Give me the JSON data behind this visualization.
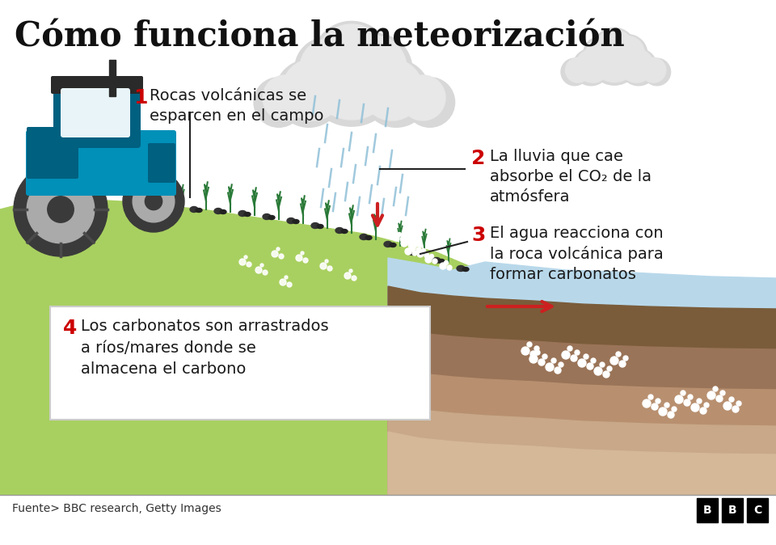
{
  "title": "Cómo funciona la meteorización",
  "title_fontsize": 30,
  "title_fontweight": "bold",
  "bg_color": "#ffffff",
  "source_text": "Fuente> BBC research, Getty Images",
  "steps": [
    {
      "num": "1",
      "text": "Rocas volcánicas se\nesparcen en el campo"
    },
    {
      "num": "2",
      "text": "La lluvia que cae\nabsorbe el CO₂ de la\natmósfera"
    },
    {
      "num": "3",
      "text": "El agua reacciona con\nla roca volcánica para\nformar carbonatos"
    },
    {
      "num": "4",
      "text": "Los carbonatos son arrastrados\na ríos/mares donde se\nalmacena el carbono"
    }
  ],
  "colors": {
    "step_num": "#cc0000",
    "step_text": "#1a1a1a",
    "grass_light": "#a8d060",
    "grass_dark": "#7ab030",
    "soil_1": "#7a5c3a",
    "soil_2": "#9a7458",
    "soil_3": "#b89070",
    "soil_4": "#c8a888",
    "soil_5": "#d4b898",
    "water": "#b8d8ea",
    "water_line": "#90b8d0",
    "rock_dark": "#333333",
    "plant_green": "#2a7a38",
    "plant_mid": "#1e6030",
    "tractor_blue": "#0090b8",
    "tractor_dark": "#006080",
    "tractor_mid": "#00a8d0",
    "wheel_dark": "#444444",
    "wheel_mid": "#666666",
    "wheel_rim": "#b0b0b0",
    "cloud_light": "#e0e0e0",
    "cloud_mid": "#c8c8c8",
    "rain_blue": "#90c0d8",
    "arrow_red": "#cc2020",
    "line_black": "#222222",
    "white": "#ffffff",
    "box_border": "#cccccc",
    "divider": "#999999",
    "footer_text": "#333333"
  }
}
